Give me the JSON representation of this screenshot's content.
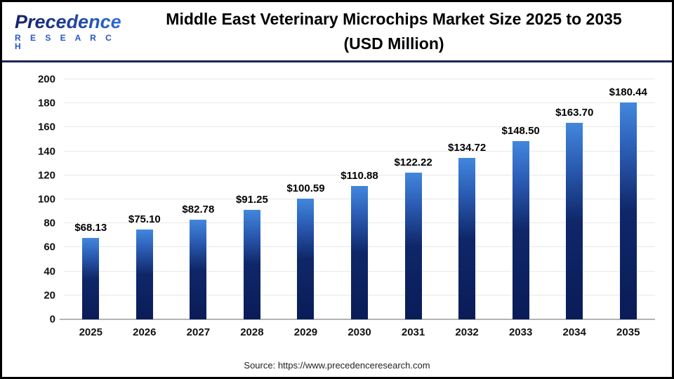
{
  "header": {
    "logo_line1": "Precedence",
    "logo_line2": "R E S E A R C H",
    "title_line1": "Middle East Veterinary Microchips Market Size 2025 to 2035",
    "title_line2": "(USD Million)"
  },
  "chart_data": {
    "type": "bar",
    "title": "Middle East Veterinary Microchips Market Size 2025 to 2035 (USD Million)",
    "categories": [
      "2025",
      "2026",
      "2027",
      "2028",
      "2029",
      "2030",
      "2031",
      "2032",
      "2033",
      "2034",
      "2035"
    ],
    "values": [
      68.13,
      75.1,
      82.78,
      91.25,
      100.59,
      110.88,
      122.22,
      134.72,
      148.5,
      163.7,
      180.44
    ],
    "value_labels": [
      "$68.13",
      "$75.10",
      "$82.78",
      "$91.25",
      "$100.59",
      "$110.88",
      "$122.22",
      "$134.72",
      "$148.50",
      "$163.70",
      "$180.44"
    ],
    "xlabel": "",
    "ylabel": "",
    "ylim": [
      0,
      200
    ],
    "yticks": [
      0,
      20,
      40,
      60,
      80,
      100,
      120,
      140,
      160,
      180,
      200
    ],
    "grid": true,
    "legend": "none",
    "colors": {
      "bar_top": "#4287dd",
      "bar_bottom": "#0a1c58",
      "gridline": "#e8e8e8",
      "baseline": "#b3b3b3",
      "header_divider": "#1b2556",
      "logo_navy": "#152567",
      "logo_blue": "#2f6fd6",
      "label_text": "#000000"
    }
  },
  "footer": {
    "source": "Source: https://www.precedenceresearch.com"
  }
}
